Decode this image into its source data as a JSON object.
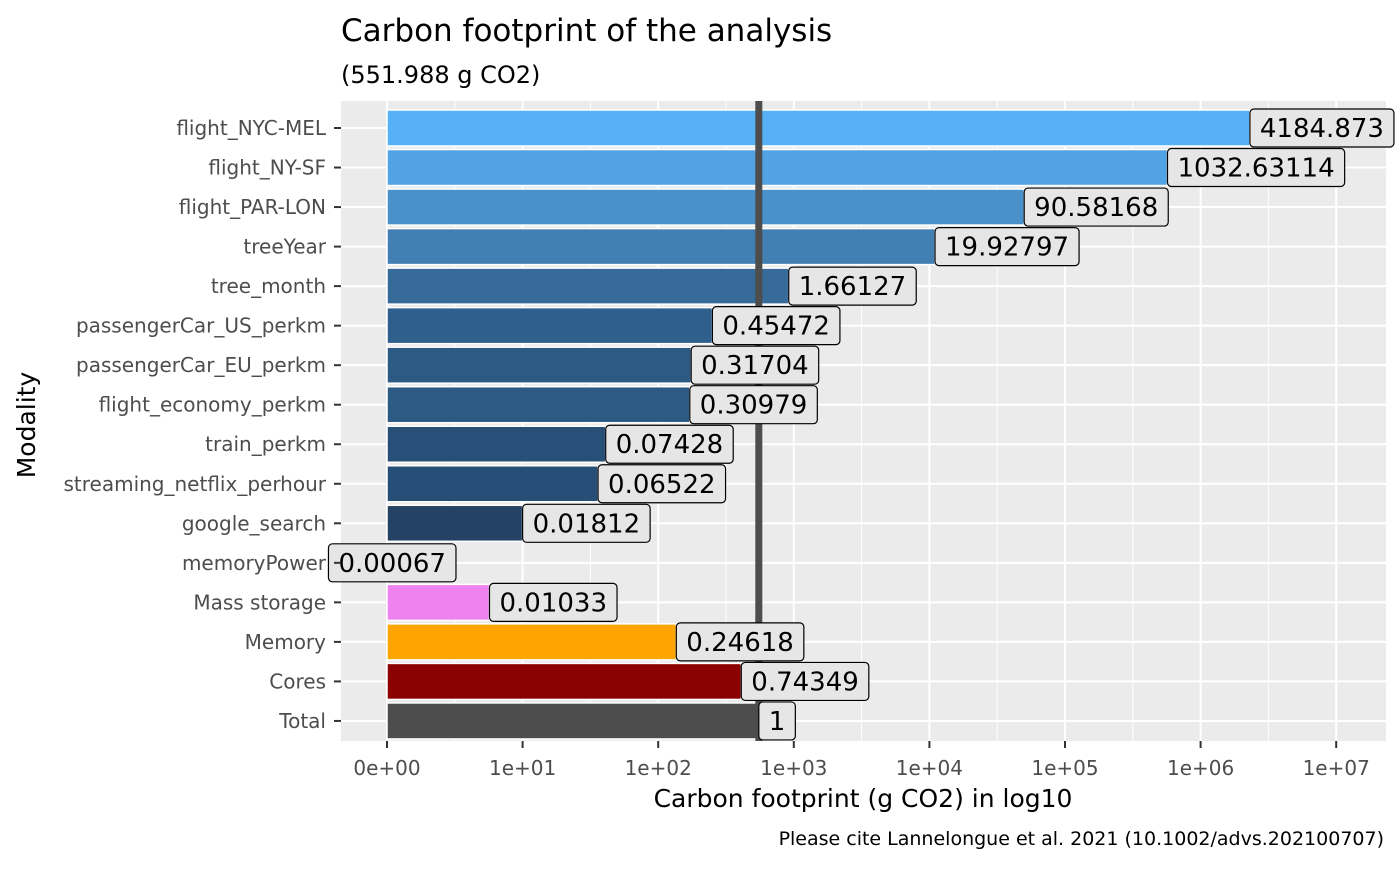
{
  "chart_data": {
    "type": "bar",
    "orientation": "horizontal",
    "title": "Carbon footprint of the analysis",
    "subtitle": "(551.988 g CO2)",
    "xlabel": "Carbon footprint (g CO2) in log10",
    "ylabel": "Modality",
    "caption": "Please cite Lannelongue et al. 2021 (10.1002/advs.202100707)",
    "x_scale": "log10",
    "x_ticks": [
      "0e+00",
      "1e+01",
      "1e+02",
      "1e+03",
      "1e+04",
      "1e+05",
      "1e+06",
      "1e+07"
    ],
    "reference_line_value": 551.988,
    "grid": true,
    "legend": "none",
    "bars": [
      {
        "category": "flight_NYC-MEL",
        "value": 2310000,
        "label": "4184.873",
        "color": "#56b1f7"
      },
      {
        "category": "flight_NY-SF",
        "value": 570000,
        "label": "1032.63114",
        "color": "#51a3e3"
      },
      {
        "category": "flight_PAR-LON",
        "value": 50000,
        "label": "90.58168",
        "color": "#4a91ca"
      },
      {
        "category": "treeYear",
        "value": 11000,
        "label": "19.92797",
        "color": "#427fb2"
      },
      {
        "category": "tree_month",
        "value": 917,
        "label": "1.66127",
        "color": "#366a98"
      },
      {
        "category": "passengerCar_US_perkm",
        "value": 251,
        "label": "0.45472",
        "color": "#2f5f8c"
      },
      {
        "category": "passengerCar_EU_perkm",
        "value": 175,
        "label": "0.31704",
        "color": "#2c5a85"
      },
      {
        "category": "flight_economy_perkm",
        "value": 171,
        "label": "0.30979",
        "color": "#2c5a85"
      },
      {
        "category": "train_perkm",
        "value": 41,
        "label": "0.07428",
        "color": "#284f78"
      },
      {
        "category": "streaming_netflix_perhour",
        "value": 36,
        "label": "0.06522",
        "color": "#274e76"
      },
      {
        "category": "google_search",
        "value": 10,
        "label": "0.01812",
        "color": "#234264"
      },
      {
        "category": "memoryPower",
        "value": 0.37,
        "label": "0.00067",
        "color": "#1f3a57"
      },
      {
        "category": "Mass storage",
        "value": 5.7,
        "label": "0.01033",
        "color": "#ee82ee"
      },
      {
        "category": "Memory",
        "value": 136,
        "label": "0.24618",
        "color": "#ffa500"
      },
      {
        "category": "Cores",
        "value": 410,
        "label": "0.74349",
        "color": "#8b0000"
      },
      {
        "category": "Total",
        "value": 552,
        "label": "1",
        "color": "#4d4d4d"
      }
    ]
  }
}
